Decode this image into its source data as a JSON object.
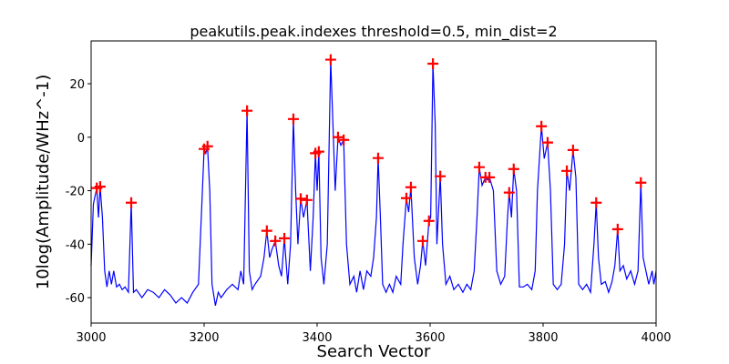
{
  "chart_data": {
    "type": "line",
    "title": "peakutils.peak.indexes threshold=0.5, min_dist=2",
    "xlabel": "Search Vector",
    "ylabel": "10log(Amplitude/WHz^-1)",
    "xlim": [
      3000,
      4000
    ],
    "ylim": [
      -69.5,
      36
    ],
    "xticks": [
      3000,
      3200,
      3400,
      3600,
      3800,
      4000
    ],
    "yticks": [
      -60,
      -40,
      -20,
      0,
      20
    ],
    "grid": false,
    "series": [
      {
        "type": "line",
        "color": "#0000ff",
        "x": [
          3000,
          3004,
          3010,
          3013,
          3016,
          3020,
          3024,
          3028,
          3032,
          3036,
          3040,
          3045,
          3050,
          3055,
          3060,
          3066,
          3071,
          3075,
          3080,
          3090,
          3100,
          3110,
          3120,
          3130,
          3140,
          3150,
          3160,
          3170,
          3180,
          3190,
          3195,
          3200,
          3203,
          3206,
          3210,
          3214,
          3220,
          3225,
          3230,
          3240,
          3250,
          3260,
          3265,
          3270,
          3276,
          3280,
          3285,
          3290,
          3300,
          3306,
          3311,
          3316,
          3320,
          3326,
          3332,
          3337,
          3342,
          3348,
          3353,
          3358,
          3362,
          3366,
          3371,
          3376,
          3382,
          3388,
          3393,
          3397,
          3400,
          3403,
          3407,
          3412,
          3418,
          3424,
          3428,
          3432,
          3437,
          3442,
          3447,
          3452,
          3458,
          3465,
          3470,
          3476,
          3482,
          3488,
          3495,
          3500,
          3505,
          3508,
          3512,
          3516,
          3522,
          3528,
          3534,
          3540,
          3548,
          3552,
          3558,
          3562,
          3566,
          3572,
          3578,
          3583,
          3587,
          3592,
          3598,
          3601,
          3605,
          3609,
          3612,
          3618,
          3622,
          3628,
          3635,
          3642,
          3650,
          3658,
          3665,
          3672,
          3678,
          3683,
          3687,
          3692,
          3698,
          3702,
          3705,
          3712,
          3718,
          3725,
          3732,
          3737,
          3740,
          3744,
          3748,
          3753,
          3758,
          3765,
          3772,
          3780,
          3786,
          3790,
          3797,
          3802,
          3808,
          3813,
          3818,
          3825,
          3832,
          3838,
          3842,
          3847,
          3853,
          3858,
          3863,
          3870,
          3877,
          3884,
          3890,
          3894,
          3898,
          3903,
          3910,
          3916,
          3922,
          3927,
          3932,
          3936,
          3942,
          3948,
          3955,
          3962,
          3968,
          3973,
          3977,
          3982,
          3987,
          3993,
          3996,
          4000
        ],
        "values": [
          -48,
          -25,
          -19,
          -30,
          -18.5,
          -30,
          -50,
          -56,
          -50,
          -55,
          -50,
          -56,
          -55,
          -57,
          -56,
          -58,
          -24.5,
          -58,
          -57,
          -60,
          -57,
          -58,
          -60,
          -57,
          -59,
          -62,
          -60,
          -62,
          -58,
          -55,
          -30,
          -4.4,
          -6,
          -3.4,
          -20,
          -55,
          -63,
          -58,
          -60,
          -57,
          -55,
          -57,
          -50,
          -55,
          9.9,
          -50,
          -57,
          -55,
          -52,
          -45,
          -35,
          -45,
          -42,
          -38.8,
          -48,
          -52,
          -37.8,
          -55,
          -40,
          6.8,
          -20,
          -40,
          -23,
          -30,
          -23.5,
          -50,
          -30,
          -6,
          -20,
          -5.4,
          -45,
          -55,
          -40,
          29,
          5,
          -20,
          0,
          -3,
          -1,
          -40,
          -55,
          -52,
          -58,
          -50,
          -57,
          -50,
          -52,
          -45,
          -30,
          -7.8,
          -30,
          -55,
          -58,
          -55,
          -58,
          -52,
          -55,
          -40,
          -22.8,
          -28,
          -18.7,
          -45,
          -55,
          -48,
          -38.8,
          -48,
          -31.3,
          -30,
          27.5,
          5,
          -40,
          -14.6,
          -40,
          -55,
          -52,
          -57,
          -55,
          -58,
          -55,
          -57,
          -50,
          -30,
          -11.2,
          -18,
          -15,
          -16,
          -15,
          -20,
          -50,
          -55,
          -52,
          -30,
          -20.7,
          -30,
          -11.9,
          -20,
          -56,
          -56,
          -55,
          -57,
          -50,
          -20,
          4.1,
          -8,
          -2,
          -20,
          -55,
          -57,
          -55,
          -40,
          -12.6,
          -20,
          -4.8,
          -15,
          -55,
          -57,
          -55,
          -58,
          -40,
          -24.5,
          -45,
          -55,
          -54,
          -58,
          -54,
          -48,
          -34.4,
          -50,
          -48,
          -53,
          -50,
          -55,
          -50,
          -17,
          -45,
          -50,
          -55,
          -50,
          -55,
          -50
        ]
      },
      {
        "type": "scatter",
        "marker": "+",
        "color": "#ff0000",
        "x": [
          3010,
          3016,
          3071,
          3200,
          3206,
          3276,
          3311,
          3326,
          3342,
          3358,
          3371,
          3382,
          3397,
          3403,
          3424,
          3437,
          3447,
          3508,
          3558,
          3566,
          3587,
          3598,
          3605,
          3618,
          3687,
          3698,
          3705,
          3740,
          3748,
          3797,
          3808,
          3842,
          3853,
          3894,
          3932,
          3973
        ],
        "values": [
          -19,
          -18.5,
          -24.5,
          -4.4,
          -3.4,
          9.9,
          -35,
          -38.8,
          -37.8,
          6.8,
          -23,
          -23.5,
          -6,
          -5.4,
          29,
          0,
          -1,
          -7.8,
          -22.8,
          -18.7,
          -38.8,
          -31.3,
          27.5,
          -14.6,
          -11.2,
          -15,
          -15,
          -20.7,
          -11.9,
          4.1,
          -2,
          -12.6,
          -4.8,
          -24.5,
          -34.4,
          -17
        ]
      }
    ]
  }
}
